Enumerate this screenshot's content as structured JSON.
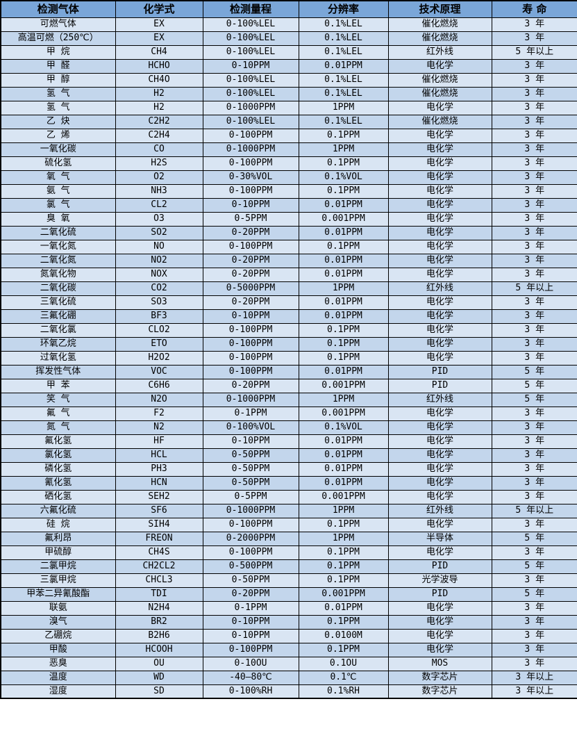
{
  "colors": {
    "header_bg": "#7aa6d8",
    "row_light": "#d9e5f3",
    "row_dark": "#c3d6ec",
    "border": "#000000",
    "text": "#000000"
  },
  "table": {
    "columns": [
      {
        "key": "gas-name",
        "label": "检测气体"
      },
      {
        "key": "formula",
        "label": "化学式"
      },
      {
        "key": "range",
        "label": "检测量程"
      },
      {
        "key": "resolution",
        "label": "分辨率"
      },
      {
        "key": "principle",
        "label": "技术原理"
      },
      {
        "key": "lifespan",
        "label": "寿 命"
      }
    ],
    "rows": [
      [
        "可燃气体",
        "EX",
        "0-100%LEL",
        "0.1%LEL",
        "催化燃烧",
        "3 年"
      ],
      [
        "高温可燃（250℃）",
        "EX",
        "0-100%LEL",
        "0.1%LEL",
        "催化燃烧",
        "3 年"
      ],
      [
        "甲 烷",
        "CH4",
        "0-100%LEL",
        "0.1%LEL",
        "红外线",
        "5 年以上"
      ],
      [
        "甲 醛",
        "HCHO",
        "0-10PPM",
        "0.01PPM",
        "电化学",
        "3 年"
      ],
      [
        "甲 醇",
        "CH4O",
        "0-100%LEL",
        "0.1%LEL",
        "催化燃烧",
        "3 年"
      ],
      [
        "氢 气",
        "H2",
        "0-100%LEL",
        "0.1%LEL",
        "催化燃烧",
        "3 年"
      ],
      [
        "氢 气",
        "H2",
        "0-1000PPM",
        "1PPM",
        "电化学",
        "3 年"
      ],
      [
        "乙 炔",
        "C2H2",
        "0-100%LEL",
        "0.1%LEL",
        "催化燃烧",
        "3 年"
      ],
      [
        "乙 烯",
        "C2H4",
        "0-100PPM",
        "0.1PPM",
        "电化学",
        "3 年"
      ],
      [
        "一氧化碳",
        "CO",
        "0-1000PPM",
        "1PPM",
        "电化学",
        "3 年"
      ],
      [
        "硫化氢",
        "H2S",
        "0-100PPM",
        "0.1PPM",
        "电化学",
        "3 年"
      ],
      [
        "氧 气",
        "O2",
        "0-30%VOL",
        "0.1%VOL",
        "电化学",
        "3 年"
      ],
      [
        "氨 气",
        "NH3",
        "0-100PPM",
        "0.1PPM",
        "电化学",
        "3 年"
      ],
      [
        "氯 气",
        "CL2",
        "0-10PPM",
        "0.01PPM",
        "电化学",
        "3 年"
      ],
      [
        "臭 氧",
        "O3",
        "0-5PPM",
        "0.001PPM",
        "电化学",
        "3 年"
      ],
      [
        "二氧化硫",
        "SO2",
        "0-20PPM",
        "0.01PPM",
        "电化学",
        "3 年"
      ],
      [
        "一氧化氮",
        "NO",
        "0-100PPM",
        "0.1PPM",
        "电化学",
        "3 年"
      ],
      [
        "二氧化氮",
        "NO2",
        "0-20PPM",
        "0.01PPM",
        "电化学",
        "3 年"
      ],
      [
        "氮氧化物",
        "NOX",
        "0-20PPM",
        "0.01PPM",
        "电化学",
        "3 年"
      ],
      [
        "二氧化碳",
        "CO2",
        "0-5000PPM",
        "1PPM",
        "红外线",
        "5 年以上"
      ],
      [
        "三氧化硫",
        "SO3",
        "0-20PPM",
        "0.01PPM",
        "电化学",
        "3 年"
      ],
      [
        "三氟化硼",
        "BF3",
        "0-10PPM",
        "0.01PPM",
        "电化学",
        "3 年"
      ],
      [
        "二氧化氯",
        "CLO2",
        "0-100PPM",
        "0.1PPM",
        "电化学",
        "3 年"
      ],
      [
        "环氧乙烷",
        "ETO",
        "0-100PPM",
        "0.1PPM",
        "电化学",
        "3 年"
      ],
      [
        "过氧化氢",
        "H2O2",
        "0-100PPM",
        "0.1PPM",
        "电化学",
        "3 年"
      ],
      [
        "挥发性气体",
        "VOC",
        "0-100PPM",
        "0.01PPM",
        "PID",
        "5 年"
      ],
      [
        "甲 苯",
        "C6H6",
        "0-20PPM",
        "0.001PPM",
        "PID",
        "5 年"
      ],
      [
        "笑 气",
        "N2O",
        "0-1000PPM",
        "1PPM",
        "红外线",
        "5 年"
      ],
      [
        "氟 气",
        "F2",
        "0-1PPM",
        "0.001PPM",
        "电化学",
        "3 年"
      ],
      [
        "氮 气",
        "N2",
        "0-100%VOL",
        "0.1%VOL",
        "电化学",
        "3 年"
      ],
      [
        "氟化氢",
        "HF",
        "0-10PPM",
        "0.01PPM",
        "电化学",
        "3 年"
      ],
      [
        "氯化氢",
        "HCL",
        "0-50PPM",
        "0.01PPM",
        "电化学",
        "3 年"
      ],
      [
        "磷化氢",
        "PH3",
        "0-50PPM",
        "0.01PPM",
        "电化学",
        "3 年"
      ],
      [
        "氰化氢",
        "HCN",
        "0-50PPM",
        "0.01PPM",
        "电化学",
        "3 年"
      ],
      [
        "硒化氢",
        "SEH2",
        "0-5PPM",
        "0.001PPM",
        "电化学",
        "3 年"
      ],
      [
        "六氟化硫",
        "SF6",
        "0-1000PPM",
        "1PPM",
        "红外线",
        "5 年以上"
      ],
      [
        "硅 烷",
        "SIH4",
        "0-100PPM",
        "0.1PPM",
        "电化学",
        "3 年"
      ],
      [
        "氟利昂",
        "FREON",
        "0-2000PPM",
        "1PPM",
        "半导体",
        "5 年"
      ],
      [
        "甲硫醇",
        "CH4S",
        "0-100PPM",
        "0.1PPM",
        "电化学",
        "3 年"
      ],
      [
        "二氯甲烷",
        "CH2CL2",
        "0-500PPM",
        "0.1PPM",
        "PID",
        "5 年"
      ],
      [
        "三氯甲烷",
        "CHCL3",
        "0-50PPM",
        "0.1PPM",
        "光学波导",
        "3 年"
      ],
      [
        "甲苯二异氰酸酯",
        "TDI",
        "0-20PPM",
        "0.001PPM",
        "PID",
        "5 年"
      ],
      [
        "联氨",
        "N2H4",
        "0-1PPM",
        "0.01PPM",
        "电化学",
        "3 年"
      ],
      [
        "溴气",
        "BR2",
        "0-10PPM",
        "0.1PPM",
        "电化学",
        "3 年"
      ],
      [
        "乙硼烷",
        "B2H6",
        "0-10PPM",
        "0.0100M",
        "电化学",
        "3 年"
      ],
      [
        "甲酸",
        "HCOOH",
        "0-100PPM",
        "0.1PPM",
        "电化学",
        "3 年"
      ],
      [
        "恶臭",
        "OU",
        "0-10OU",
        "0.1OU",
        "MOS",
        "3 年"
      ],
      [
        "温度",
        "WD",
        "-40—80℃",
        "0.1℃",
        "数字芯片",
        "3 年以上"
      ],
      [
        "湿度",
        "SD",
        "0-100%RH",
        "0.1%RH",
        "数字芯片",
        "3 年以上"
      ]
    ]
  }
}
